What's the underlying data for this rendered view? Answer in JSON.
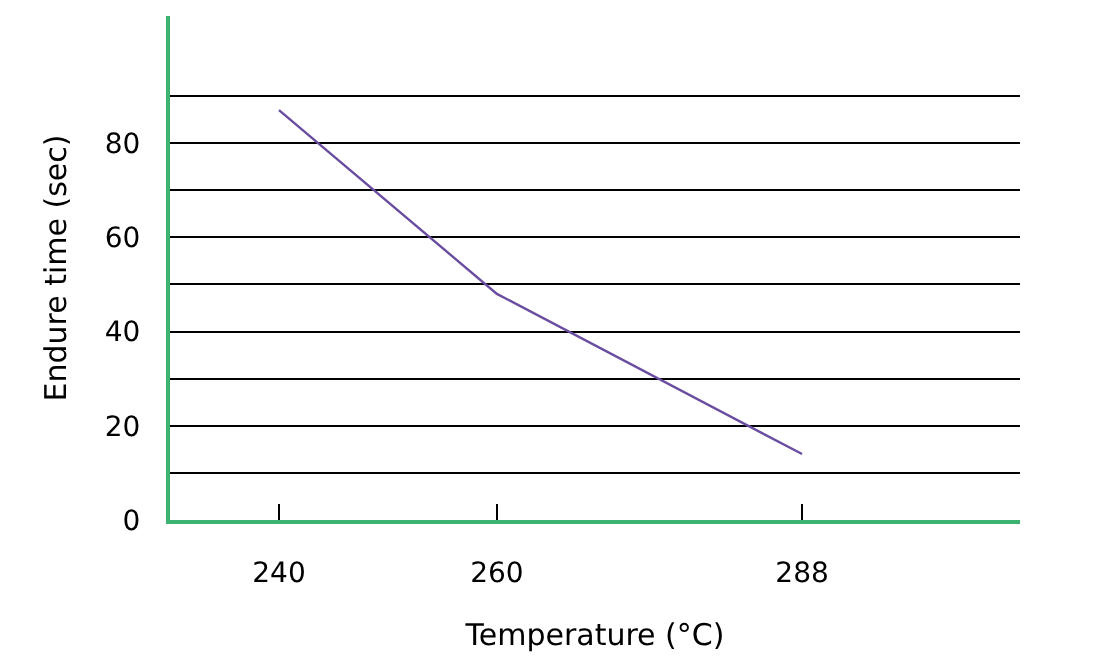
{
  "chart_data": {
    "type": "line",
    "xlabel": "Temperature (°C)",
    "ylabel": "Endure time (sec)",
    "x": [
      240,
      260,
      288
    ],
    "series": [
      {
        "color": "#6a4ca0",
        "values": [
          87,
          48,
          14
        ]
      }
    ],
    "xlim": [
      230,
      308
    ],
    "xticks": [
      240,
      260,
      288
    ],
    "ylim": [
      0,
      107
    ],
    "yticks": [
      0,
      {
        "value": 10,
        "label": null
      },
      20,
      {
        "value": 30,
        "label": null
      },
      40,
      {
        "value": 50,
        "label": null
      },
      60,
      {
        "value": 70,
        "label": null
      },
      80,
      {
        "value": 90,
        "label": null
      }
    ],
    "grid": "y",
    "marker": "none",
    "line_style": "solid"
  }
}
